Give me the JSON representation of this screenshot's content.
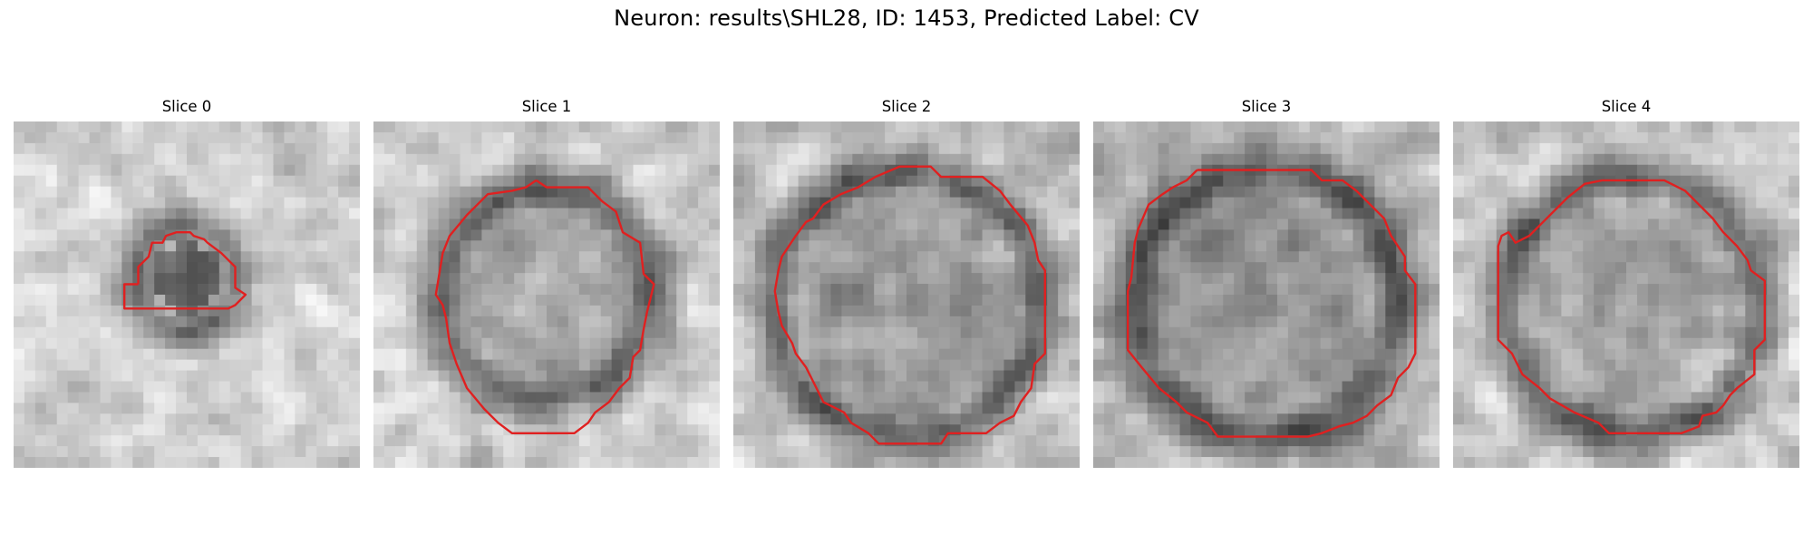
{
  "figure": {
    "title": "Neuron: results\\SHL28, ID: 1453, Predicted Label: CV"
  },
  "panels": [
    {
      "title": "Slice 0",
      "image": "grayscale-microscopy-patch",
      "contour_color": "#e02020",
      "contour_description": "small irregular region"
    },
    {
      "title": "Slice 1",
      "image": "grayscale-microscopy-patch",
      "contour_color": "#e02020",
      "contour_description": "round vesicle outline"
    },
    {
      "title": "Slice 2",
      "image": "grayscale-microscopy-patch",
      "contour_color": "#e02020",
      "contour_description": "large octagonal outline"
    },
    {
      "title": "Slice 3",
      "image": "grayscale-microscopy-patch",
      "contour_color": "#e02020",
      "contour_description": "large octagonal outline"
    },
    {
      "title": "Slice 4",
      "image": "grayscale-microscopy-patch",
      "contour_color": "#e02020",
      "contour_description": "large outline with notch at upper left"
    }
  ]
}
